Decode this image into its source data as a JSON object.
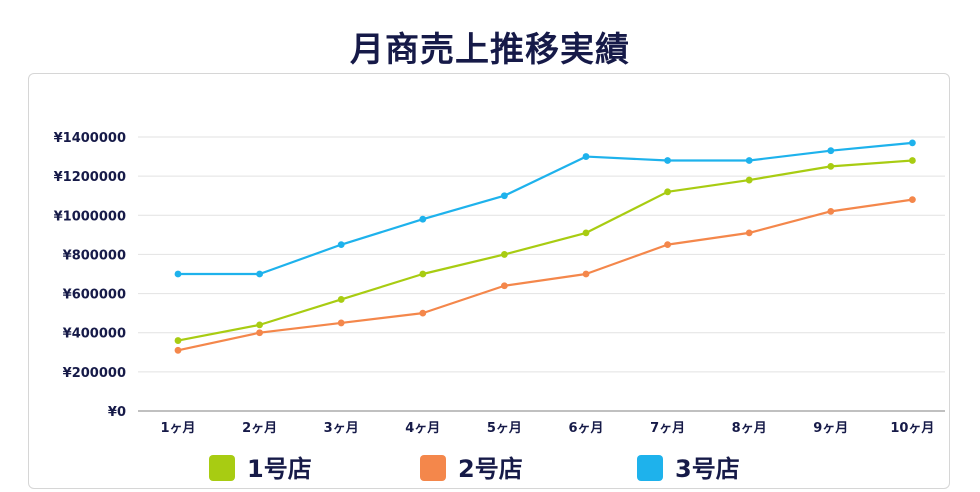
{
  "chart_data": {
    "type": "line",
    "title": "月商売上推移実績",
    "categories": [
      "1ヶ月",
      "2ヶ月",
      "3ヶ月",
      "4ヶ月",
      "5ヶ月",
      "6ヶ月",
      "7ヶ月",
      "8ヶ月",
      "9ヶ月",
      "10ヶ月"
    ],
    "ylim": [
      0,
      1400000
    ],
    "yticks": [
      0,
      200000,
      400000,
      600000,
      800000,
      1000000,
      1200000,
      1400000
    ],
    "ytick_labels": [
      "¥0",
      "¥200000",
      "¥400000",
      "¥600000",
      "¥800000",
      "¥1000000",
      "¥1200000",
      "¥1400000"
    ],
    "grid": true,
    "legend_position": "bottom",
    "series": [
      {
        "name": "1号店",
        "color": "#a8cc12",
        "values": [
          360000,
          440000,
          570000,
          700000,
          800000,
          910000,
          1120000,
          1180000,
          1250000,
          1280000
        ]
      },
      {
        "name": "2号店",
        "color": "#f4874b",
        "values": [
          310000,
          400000,
          450000,
          500000,
          640000,
          700000,
          850000,
          910000,
          1020000,
          1080000
        ]
      },
      {
        "name": "3号店",
        "color": "#1eb2ec",
        "values": [
          700000,
          700000,
          850000,
          980000,
          1100000,
          1300000,
          1280000,
          1280000,
          1330000,
          1370000
        ]
      }
    ]
  }
}
